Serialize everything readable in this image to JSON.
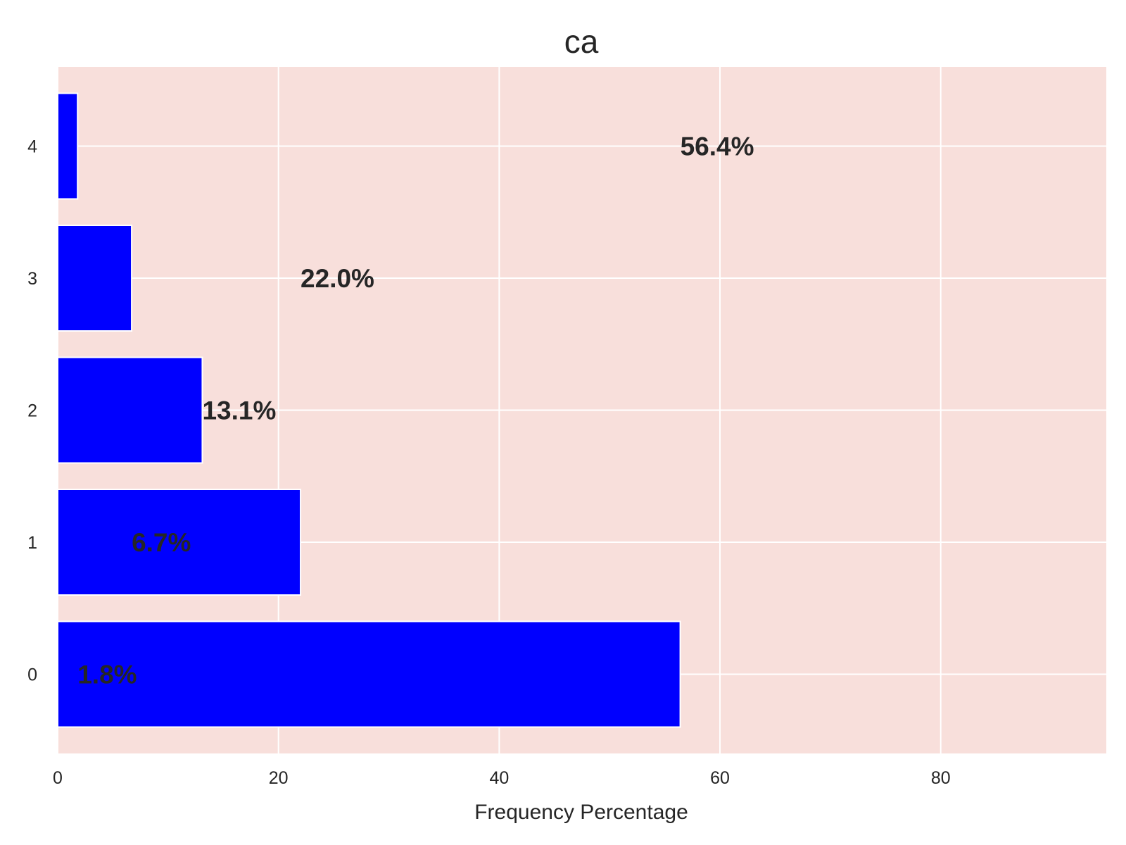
{
  "chart_data": {
    "type": "bar",
    "orientation": "horizontal",
    "title": "ca",
    "xlabel": "Frequency Percentage",
    "ylabel": "",
    "categories": [
      "0",
      "1",
      "2",
      "3",
      "4"
    ],
    "values": [
      56.4,
      22.0,
      13.1,
      6.7,
      1.8
    ],
    "data_labels": [
      "1.8%",
      "6.7%",
      "13.1%",
      "22.0%",
      "56.4%"
    ],
    "data_label_x": [
      1.8,
      6.7,
      13.1,
      22.0,
      56.4
    ],
    "xlim": [
      0,
      95
    ],
    "x_ticks": [
      0,
      20,
      40,
      60,
      80
    ],
    "x_tick_labels": [
      "0",
      "20",
      "40",
      "60",
      "80"
    ],
    "grid": true,
    "colors": {
      "bar": "#0000ff",
      "plot_background": "#f8dfdb",
      "grid": "#ffffff",
      "text": "#262626"
    }
  }
}
